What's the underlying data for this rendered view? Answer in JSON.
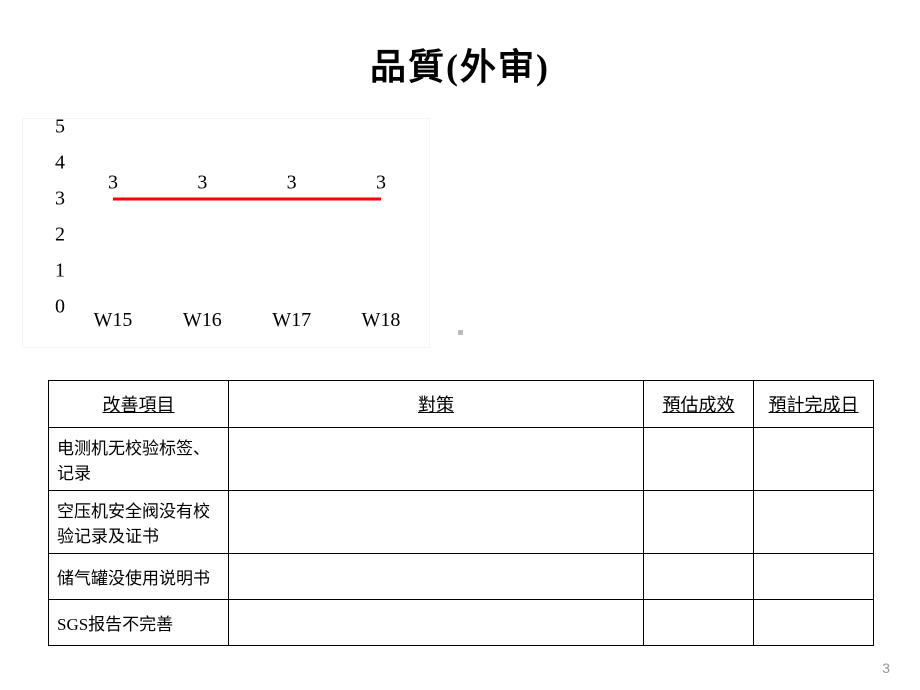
{
  "title": "品質(外审)",
  "chart": {
    "type": "line",
    "categories": [
      "W15",
      "W16",
      "W17",
      "W18"
    ],
    "values": [
      3,
      3,
      3,
      3
    ],
    "ylim": [
      0,
      5
    ],
    "ytick_step": 1,
    "line_color": "#ff0000",
    "line_width": 3,
    "background_color": "#ffffff",
    "label_fontsize": 20,
    "data_label_color": "#000000"
  },
  "table": {
    "columns": [
      "改善項目",
      "對策",
      "預估成效",
      "預計完成日"
    ],
    "rows": [
      [
        "电测机无校验标签、记录",
        "",
        "",
        ""
      ],
      [
        "空压机安全阀没有校验记录及证书",
        "",
        "",
        ""
      ],
      [
        "储气罐没使用说明书",
        "",
        "",
        ""
      ],
      [
        "SGS报告不完善",
        "",
        "",
        ""
      ]
    ]
  },
  "page_number": "3"
}
